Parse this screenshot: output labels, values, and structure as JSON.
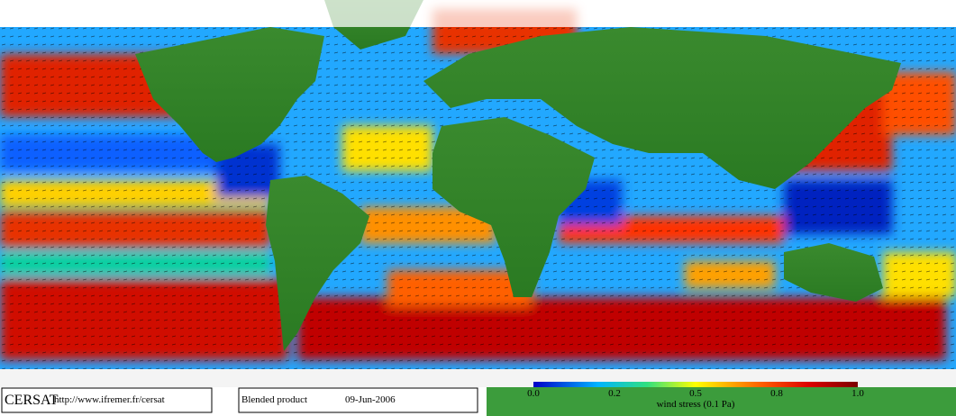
{
  "footer": {
    "brand": "CERSAT",
    "url": "http://www.ifremer.fr/cersat",
    "product": "Blended product",
    "date": "09-Jun-2006"
  },
  "colorbar": {
    "ticks": [
      "0.0",
      "0.2",
      "0.5",
      "0.8",
      "1.0"
    ],
    "label": "wind stress (0.1 Pa)"
  }
}
